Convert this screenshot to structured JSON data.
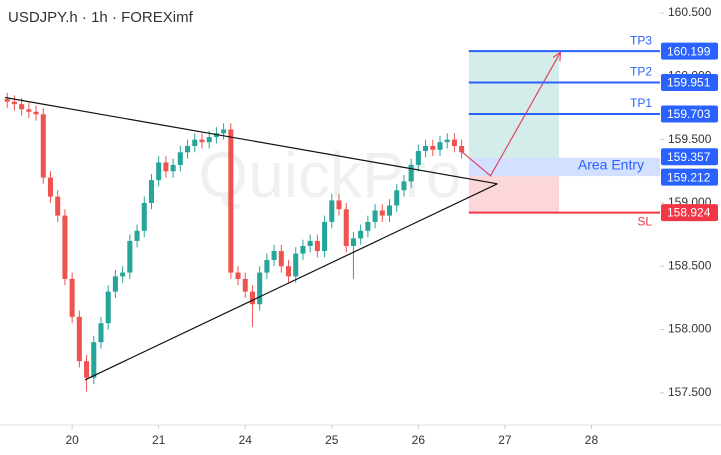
{
  "chart_data": {
    "type": "candlestick",
    "title": "USDJPY.h · 1h · FOREXimf",
    "watermark": "QuickPro",
    "x": [
      -18,
      -16,
      -14,
      -12,
      -10,
      -8,
      -6,
      -4,
      -2,
      0,
      2,
      4,
      6,
      8,
      10,
      12,
      14,
      16,
      18,
      20,
      22,
      24,
      26,
      28,
      30,
      32,
      34,
      36,
      38,
      40,
      42,
      44,
      46,
      48,
      50,
      52,
      54,
      56,
      58,
      60,
      62,
      64,
      66,
      68,
      70,
      72,
      74,
      76,
      78,
      80,
      82,
      84,
      86,
      88,
      90,
      92,
      94,
      96,
      98,
      100,
      102,
      104,
      106,
      108
    ],
    "open": [
      159.82,
      159.8,
      159.78,
      159.74,
      159.72,
      159.7,
      159.2,
      159.05,
      158.9,
      158.4,
      158.1,
      157.75,
      157.62,
      157.9,
      158.05,
      158.3,
      158.42,
      158.45,
      158.7,
      158.78,
      159.0,
      159.18,
      159.32,
      159.25,
      159.3,
      159.4,
      159.45,
      159.5,
      159.48,
      159.52,
      159.55,
      159.58,
      158.45,
      158.4,
      158.3,
      158.2,
      158.45,
      158.55,
      158.62,
      158.5,
      158.42,
      158.6,
      158.66,
      158.7,
      158.62,
      158.85,
      159.02,
      158.95,
      158.66,
      158.72,
      158.78,
      158.85,
      158.94,
      158.9,
      158.98,
      159.1,
      159.17,
      159.3,
      159.41,
      159.45,
      159.42,
      159.48,
      159.5,
      159.45
    ],
    "high": [
      159.87,
      159.85,
      159.83,
      159.79,
      159.77,
      159.75,
      159.25,
      159.1,
      158.95,
      158.45,
      158.15,
      157.8,
      157.95,
      158.1,
      158.35,
      158.47,
      158.5,
      158.75,
      158.83,
      159.05,
      159.23,
      159.37,
      159.37,
      159.35,
      159.45,
      159.5,
      159.55,
      159.55,
      159.57,
      159.6,
      159.63,
      159.63,
      158.5,
      158.45,
      158.35,
      158.5,
      158.6,
      158.67,
      158.67,
      158.55,
      158.65,
      158.71,
      158.75,
      158.75,
      158.9,
      159.07,
      159.07,
      159.0,
      158.77,
      158.83,
      158.9,
      158.99,
      158.99,
      159.03,
      159.15,
      159.22,
      159.35,
      159.46,
      159.5,
      159.5,
      159.53,
      159.55,
      159.55,
      159.5
    ],
    "low": [
      159.75,
      159.73,
      159.69,
      159.67,
      159.65,
      159.15,
      159.0,
      158.85,
      158.35,
      158.05,
      157.7,
      157.51,
      157.57,
      157.85,
      158.0,
      158.25,
      158.37,
      158.4,
      158.65,
      158.73,
      158.95,
      159.13,
      159.2,
      159.2,
      159.25,
      159.35,
      159.4,
      159.43,
      159.43,
      159.47,
      159.5,
      158.4,
      158.35,
      158.25,
      158.02,
      158.15,
      158.4,
      158.5,
      158.45,
      158.37,
      158.37,
      158.55,
      158.61,
      158.57,
      158.57,
      158.8,
      158.9,
      158.61,
      158.4,
      158.67,
      158.73,
      158.8,
      158.85,
      158.85,
      158.93,
      159.05,
      159.12,
      159.25,
      159.36,
      159.37,
      159.37,
      159.43,
      159.4,
      159.35
    ],
    "close": [
      159.8,
      159.78,
      159.74,
      159.72,
      159.7,
      159.2,
      159.05,
      158.9,
      158.4,
      158.1,
      157.75,
      157.62,
      157.9,
      158.05,
      158.3,
      158.42,
      158.45,
      158.7,
      158.78,
      159.0,
      159.18,
      159.32,
      159.25,
      159.3,
      159.4,
      159.45,
      159.5,
      159.48,
      159.52,
      159.55,
      159.58,
      158.45,
      158.4,
      158.3,
      158.2,
      158.45,
      158.55,
      158.62,
      158.5,
      158.42,
      158.6,
      158.66,
      158.7,
      158.62,
      158.85,
      159.02,
      158.95,
      158.66,
      158.72,
      158.78,
      158.85,
      158.94,
      158.9,
      158.98,
      159.1,
      159.17,
      159.3,
      159.41,
      159.45,
      159.42,
      159.48,
      159.5,
      159.45,
      159.4
    ],
    "up_color": "#26a69a",
    "down_color": "#ef5350",
    "xlim": [
      -20,
      163
    ],
    "xticks": [
      {
        "value": 0,
        "label": "20"
      },
      {
        "value": 24,
        "label": "21"
      },
      {
        "value": 48,
        "label": "24"
      },
      {
        "value": 72,
        "label": "25"
      },
      {
        "value": 96,
        "label": "26"
      },
      {
        "value": 120,
        "label": "27"
      },
      {
        "value": 144,
        "label": "28"
      }
    ],
    "ylim": [
      157.246,
      160.603
    ],
    "yticks": [
      {
        "value": 157.5,
        "label": "157.500"
      },
      {
        "value": 158,
        "label": "158.000"
      },
      {
        "value": 158.5,
        "label": "158.500"
      },
      {
        "value": 159,
        "label": "159.000"
      },
      {
        "value": 159.5,
        "label": "159.500"
      },
      {
        "value": 160,
        "label": "160.000"
      },
      {
        "value": 160.5,
        "label": "160.500"
      }
    ],
    "trendlines": [
      {
        "x": [
          -18.6,
          117.9
        ],
        "y": [
          159.833,
          159.151
        ]
      },
      {
        "x": [
          3.6,
          117.9
        ],
        "y": [
          157.603,
          159.151
        ]
      }
    ],
    "projection": {
      "x": [
        107.7,
        116,
        135.4
      ],
      "y": [
        159.413,
        159.214,
        160.19
      ],
      "color": "#e0455a"
    },
    "position_x": [
      110,
      135
    ],
    "targets": [
      {
        "label": "TP3",
        "value": 160.199
      },
      {
        "label": "TP2",
        "value": 159.951
      },
      {
        "label": "TP1",
        "value": 159.703
      }
    ],
    "entry": {
      "label": "Area Entry",
      "values": [
        159.357,
        159.212
      ]
    },
    "stop": {
      "label": "SL",
      "value": 158.924
    },
    "target_color": "#2962ff",
    "stop_color": "#f23645"
  }
}
